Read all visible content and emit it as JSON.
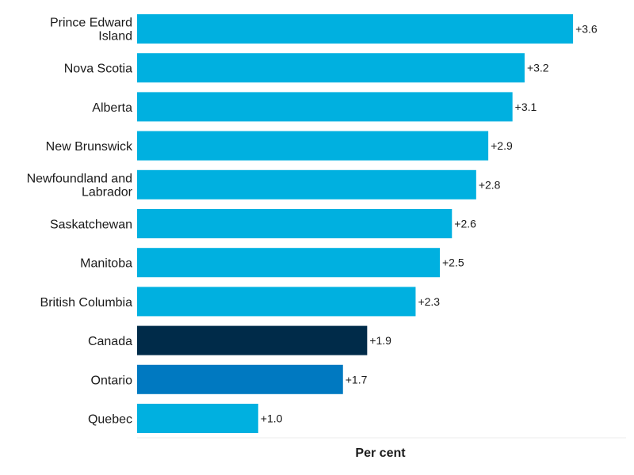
{
  "chart_data": {
    "type": "bar",
    "orientation": "horizontal",
    "categories": [
      "Prince Edward Island",
      "Nova Scotia",
      "Alberta",
      "New Brunswick",
      "Newfoundland and Labrador",
      "Saskatchewan",
      "Manitoba",
      "British Columbia",
      "Canada",
      "Ontario",
      "Quebec"
    ],
    "values": [
      3.6,
      3.2,
      3.1,
      2.9,
      2.8,
      2.6,
      2.5,
      2.3,
      1.9,
      1.7,
      1.0
    ],
    "value_labels": [
      "+3.6",
      "+3.2",
      "+3.1",
      "+2.9",
      "+2.8",
      "+2.6",
      "+2.5",
      "+2.3",
      "+1.9",
      "+1.7",
      "+1.0"
    ],
    "xlabel": "Per cent",
    "ylabel": "",
    "xlim": [
      0,
      4.0
    ],
    "grid": false,
    "legend": "none",
    "colors": {
      "default": "#00b0e0",
      "Canada": "#002b49",
      "Ontario": "#0079c1"
    }
  }
}
